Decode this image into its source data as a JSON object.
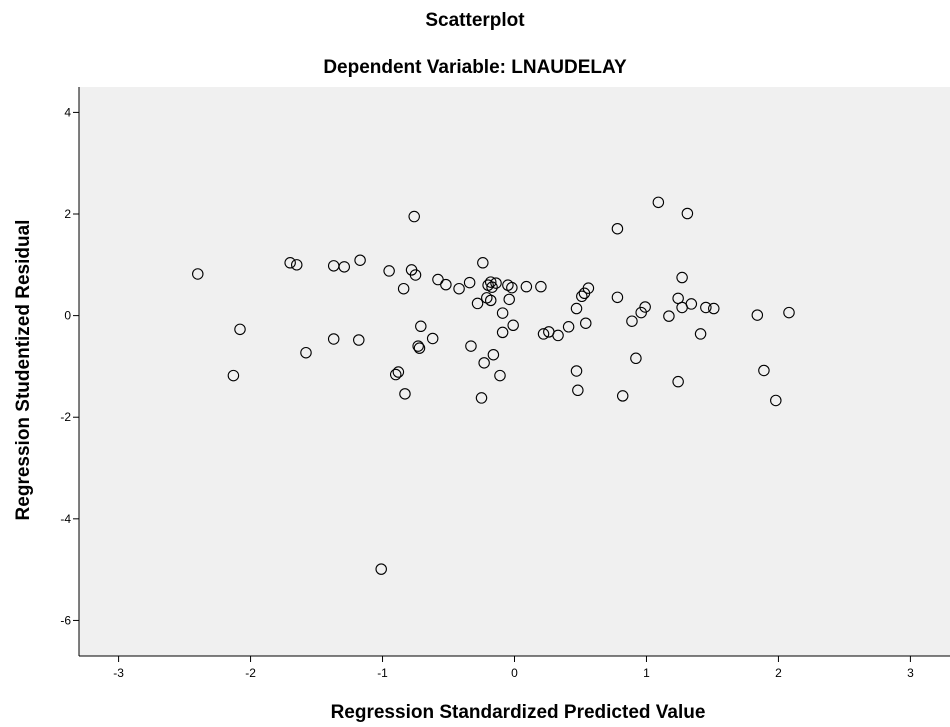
{
  "chart_data": {
    "type": "scatter",
    "title": "Scatterplot",
    "subtitle": "Dependent Variable: LNAUDELAY",
    "xlabel": "Regression Standardized Predicted Value",
    "ylabel": "Regression Studentized Residual",
    "xlim": [
      -3.3,
      3.3
    ],
    "ylim": [
      -6.7,
      4.5
    ],
    "xticks": [
      -3,
      -2,
      -1,
      0,
      1,
      2,
      3
    ],
    "yticks": [
      4,
      2,
      0,
      -2,
      -4,
      -6
    ],
    "grid": false,
    "legend": "none",
    "colors": {
      "plot_background": "#f0f0f0",
      "marker_stroke": "#000000"
    },
    "points": [
      {
        "x": -2.4,
        "y": 0.82
      },
      {
        "x": -2.08,
        "y": -0.27
      },
      {
        "x": -2.13,
        "y": -1.18
      },
      {
        "x": -1.7,
        "y": 1.04
      },
      {
        "x": -1.65,
        "y": 1.0
      },
      {
        "x": -1.58,
        "y": -0.73
      },
      {
        "x": -1.37,
        "y": 0.98
      },
      {
        "x": -1.29,
        "y": 0.96
      },
      {
        "x": -1.17,
        "y": 1.09
      },
      {
        "x": -1.37,
        "y": -0.46
      },
      {
        "x": -1.18,
        "y": -0.48
      },
      {
        "x": -0.95,
        "y": 0.88
      },
      {
        "x": -0.78,
        "y": 0.9
      },
      {
        "x": -0.75,
        "y": 0.8
      },
      {
        "x": -0.84,
        "y": 0.53
      },
      {
        "x": -0.76,
        "y": 1.95
      },
      {
        "x": -0.88,
        "y": -1.11
      },
      {
        "x": -0.9,
        "y": -1.16
      },
      {
        "x": -0.83,
        "y": -1.54
      },
      {
        "x": -0.73,
        "y": -0.6
      },
      {
        "x": -0.72,
        "y": -0.64
      },
      {
        "x": -0.71,
        "y": -0.21
      },
      {
        "x": -0.62,
        "y": -0.45
      },
      {
        "x": -0.58,
        "y": 0.71
      },
      {
        "x": -0.52,
        "y": 0.61
      },
      {
        "x": -0.42,
        "y": 0.53
      },
      {
        "x": -0.34,
        "y": 0.65
      },
      {
        "x": -0.24,
        "y": 1.04
      },
      {
        "x": -0.2,
        "y": 0.6
      },
      {
        "x": -0.18,
        "y": 0.66
      },
      {
        "x": -0.17,
        "y": 0.56
      },
      {
        "x": -0.14,
        "y": 0.64
      },
      {
        "x": -0.21,
        "y": 0.35
      },
      {
        "x": -0.18,
        "y": 0.3
      },
      {
        "x": -0.28,
        "y": 0.24
      },
      {
        "x": -0.05,
        "y": 0.6
      },
      {
        "x": -0.02,
        "y": 0.55
      },
      {
        "x": -0.04,
        "y": 0.32
      },
      {
        "x": -0.09,
        "y": 0.05
      },
      {
        "x": -0.01,
        "y": -0.19
      },
      {
        "x": -0.09,
        "y": -0.33
      },
      {
        "x": -0.33,
        "y": -0.6
      },
      {
        "x": -0.16,
        "y": -0.77
      },
      {
        "x": -0.23,
        "y": -0.93
      },
      {
        "x": -0.11,
        "y": -1.18
      },
      {
        "x": -0.25,
        "y": -1.62
      },
      {
        "x": 0.09,
        "y": 0.57
      },
      {
        "x": 0.2,
        "y": 0.57
      },
      {
        "x": 0.22,
        "y": -0.36
      },
      {
        "x": 0.26,
        "y": -0.32
      },
      {
        "x": 0.33,
        "y": -0.39
      },
      {
        "x": 0.41,
        "y": -0.22
      },
      {
        "x": 0.47,
        "y": 0.14
      },
      {
        "x": 0.51,
        "y": 0.38
      },
      {
        "x": 0.53,
        "y": 0.44
      },
      {
        "x": 0.56,
        "y": 0.54
      },
      {
        "x": 0.54,
        "y": -0.15
      },
      {
        "x": 0.47,
        "y": -1.09
      },
      {
        "x": 0.48,
        "y": -1.47
      },
      {
        "x": 0.78,
        "y": 1.71
      },
      {
        "x": 0.78,
        "y": 0.36
      },
      {
        "x": 0.89,
        "y": -0.11
      },
      {
        "x": 0.96,
        "y": 0.06
      },
      {
        "x": 0.99,
        "y": 0.17
      },
      {
        "x": 0.92,
        "y": -0.84
      },
      {
        "x": 0.82,
        "y": -1.58
      },
      {
        "x": 1.09,
        "y": 2.23
      },
      {
        "x": 1.31,
        "y": 2.01
      },
      {
        "x": 1.27,
        "y": 0.75
      },
      {
        "x": 1.24,
        "y": 0.34
      },
      {
        "x": 1.27,
        "y": 0.16
      },
      {
        "x": 1.34,
        "y": 0.23
      },
      {
        "x": 1.17,
        "y": -0.01
      },
      {
        "x": 1.45,
        "y": 0.16
      },
      {
        "x": 1.51,
        "y": 0.14
      },
      {
        "x": 1.41,
        "y": -0.36
      },
      {
        "x": 1.24,
        "y": -1.3
      },
      {
        "x": 1.84,
        "y": 0.01
      },
      {
        "x": 2.08,
        "y": 0.06
      },
      {
        "x": 1.89,
        "y": -1.08
      },
      {
        "x": 1.98,
        "y": -1.67
      },
      {
        "x": -1.01,
        "y": -4.99
      }
    ]
  }
}
